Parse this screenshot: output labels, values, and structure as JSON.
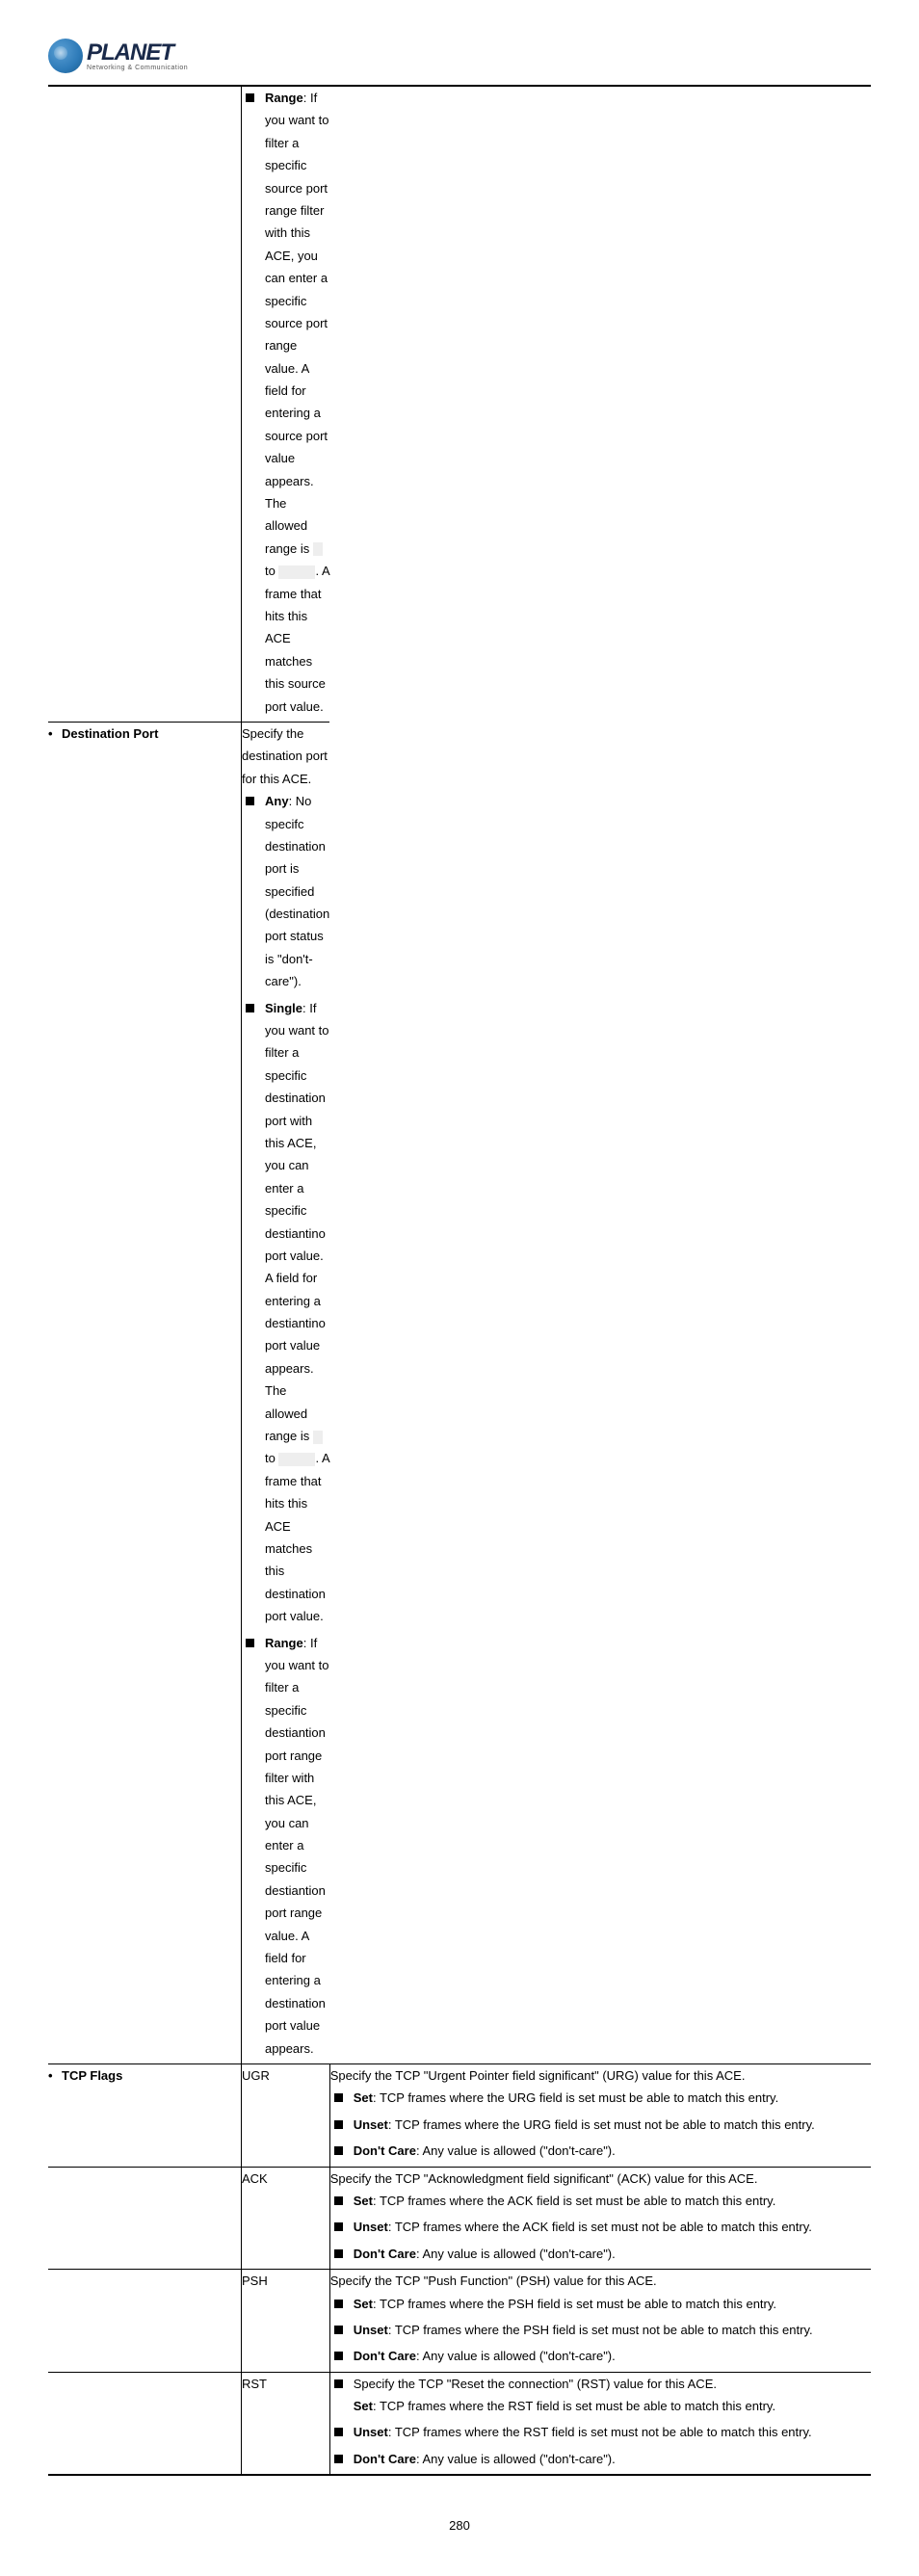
{
  "logo": {
    "name": "PLANET",
    "sub": "Networking & Communication"
  },
  "rows": {
    "continuation": {
      "range_label": "Range",
      "range_text_1": ": If you want to filter a specific source port range filter with this ACE, you can enter a specific source port range value. A field for entering a source port value appears. The allowed range is ",
      "range_to": " to ",
      "range_text_2": ". A frame that hits this ACE matches this source port value."
    },
    "destport": {
      "title": "Destination Port",
      "intro": "Specify the destination port for this ACE.",
      "any_label": "Any",
      "any_text": ": No specifc destination port is specified (destination port status is \"don't-care\").",
      "single_label": "Single",
      "single_text_1": ": If you want to filter a specific destination port with this ACE, you can enter a specific destiantino port value. A field for entering a destiantino port value appears. The allowed range is ",
      "single_to": " to ",
      "single_text_2": ". A frame that hits this ACE matches this destination port value.",
      "range_label": "Range",
      "range_text": ": If you want to filter a specific destiantion port range filter with this ACE, you can enter a specific destiantion port range value. A field for entering a destination port value appears."
    },
    "tcpflags": {
      "title": "TCP Flags",
      "set_label": "Set",
      "unset_label": "Unset",
      "dontcare_label": "Don't Care",
      "dontcare_text": ": Any value is allowed (\"don't-care\").",
      "ugr": {
        "name": "UGR",
        "spec": "Specify the TCP \"Urgent Pointer field significant\" (URG) value for this ACE.",
        "set": ": TCP frames where the URG field is set must be able to match this entry.",
        "unset": ": TCP frames where the URG field is set must not be able to match this entry."
      },
      "ack": {
        "name": "ACK",
        "spec": "Specify the TCP \"Acknowledgment field significant\" (ACK) value for this ACE.",
        "set": ": TCP frames where the ACK field is set must be able to match this entry.",
        "unset": ": TCP frames where the ACK field is set must not be able to match this entry."
      },
      "psh": {
        "name": "PSH",
        "spec": "Specify the TCP \"Push Function\" (PSH) value for this ACE.",
        "set": ": TCP frames where the PSH field is set must be able to match this entry.",
        "unset": ": TCP frames where the PSH field is set must not be able to match this entry."
      },
      "rst": {
        "name": "RST",
        "spec": "Specify the TCP \"Reset the connection\" (RST) value for this ACE.",
        "set": ": TCP frames where the RST field is set must be able to match this entry.",
        "unset": ": TCP frames where the RST field is set must not be able to match this entry."
      }
    }
  },
  "page_number": "280"
}
